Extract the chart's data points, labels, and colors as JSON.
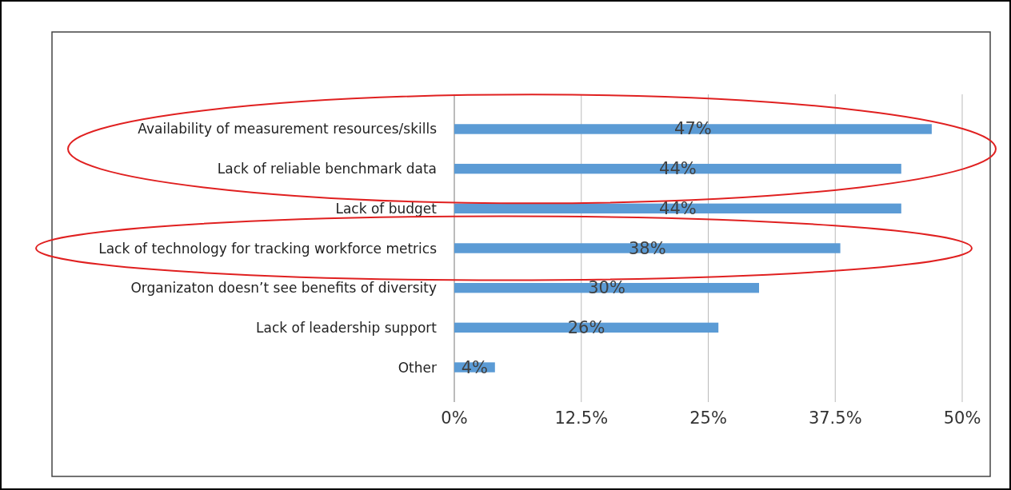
{
  "chart_data": {
    "type": "bar",
    "orientation": "horizontal",
    "categories": [
      "Availability of measurement resources/skills",
      "Lack of reliable benchmark data",
      "Lack of budget",
      "Lack of technology for tracking workforce metrics",
      "Organizaton doesn’t see benefits of diversity",
      "Lack of leadership support",
      "Other"
    ],
    "values": [
      47,
      44,
      44,
      38,
      30,
      26,
      4
    ],
    "value_labels": [
      "47%",
      "44%",
      "44%",
      "38%",
      "30%",
      "26%",
      "4%"
    ],
    "color": "#5b9bd5",
    "xlim": [
      0,
      50
    ],
    "xticks": [
      {
        "value": 0,
        "label": "0%"
      },
      {
        "value": 12.5,
        "label": "12.5%"
      },
      {
        "value": 25,
        "label": "25%"
      },
      {
        "value": 37.5,
        "label": "37.5%"
      },
      {
        "value": 50,
        "label": "50%"
      }
    ],
    "grid": "x"
  }
}
